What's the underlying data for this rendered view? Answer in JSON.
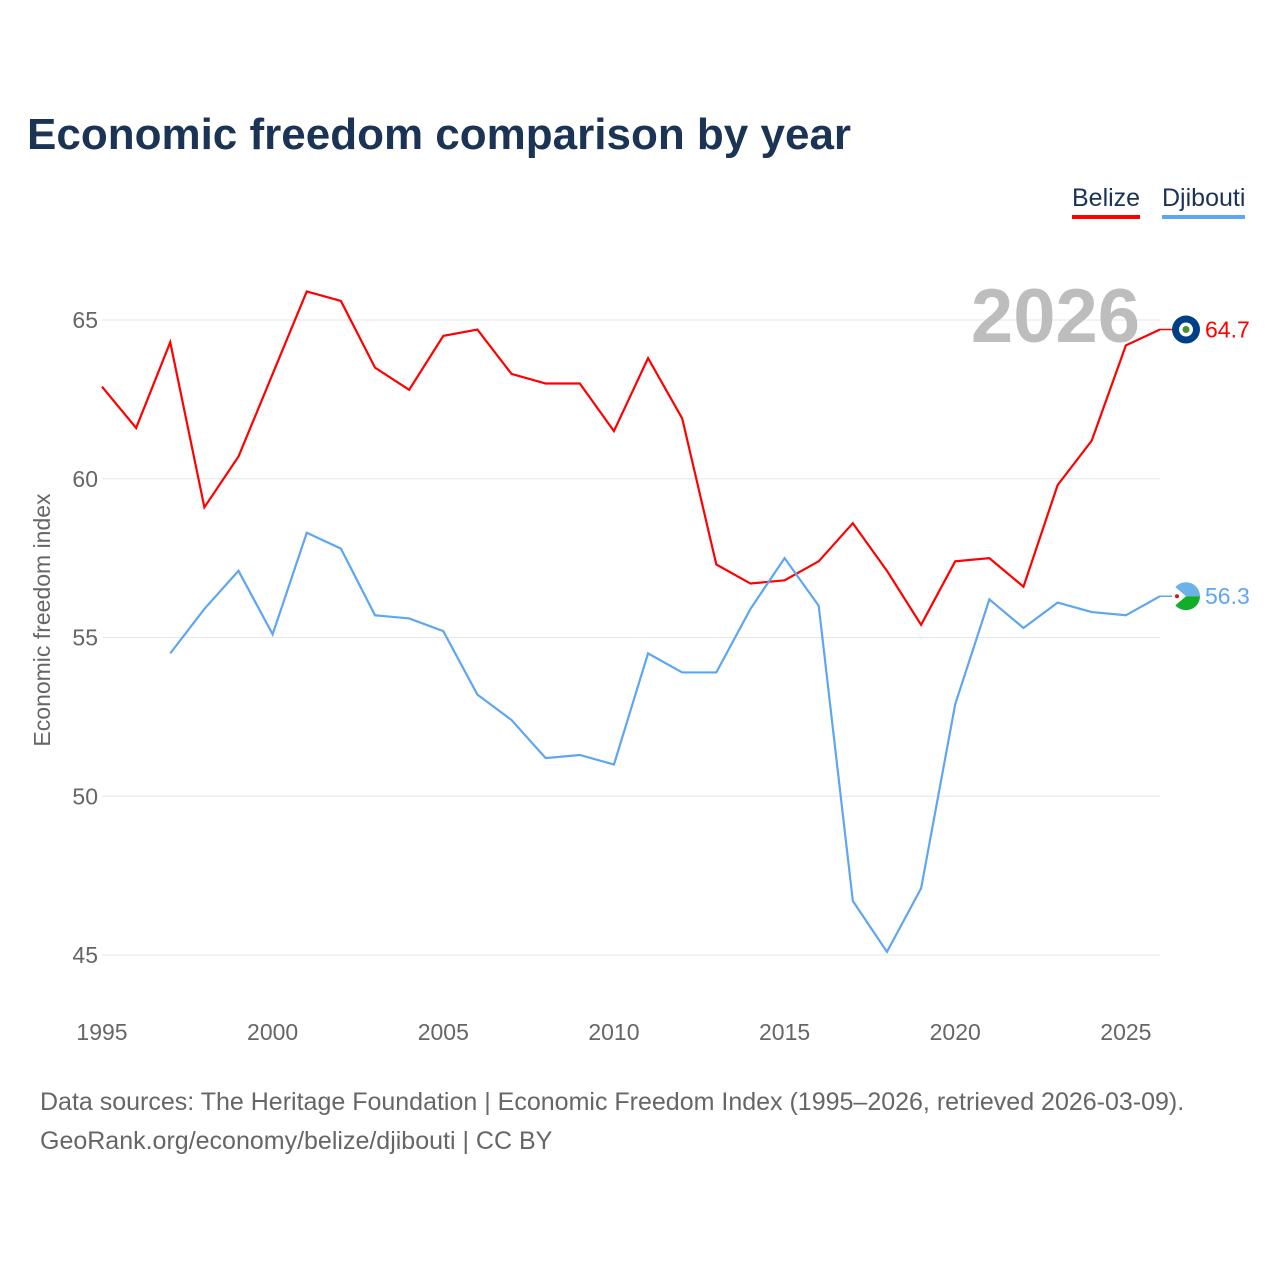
{
  "chart_data": {
    "type": "line",
    "title": "Economic freedom comparison by year",
    "xlabel": "",
    "ylabel": "Economic freedom index",
    "xlim": [
      1995,
      2026
    ],
    "ylim": [
      45,
      65
    ],
    "x_ticks": [
      "1995",
      "2000",
      "2005",
      "2010",
      "2015",
      "2020",
      "2025"
    ],
    "y_ticks": [
      "45",
      "50",
      "55",
      "60",
      "65"
    ],
    "grid": true,
    "legend_position": "top-right",
    "year_label": "2026",
    "series": [
      {
        "name": "Belize",
        "color": "#ff0000",
        "end_label": "64.7",
        "x": [
          1995,
          1996,
          1997,
          1998,
          1999,
          2000,
          2001,
          2002,
          2003,
          2004,
          2005,
          2006,
          2007,
          2008,
          2009,
          2010,
          2011,
          2012,
          2013,
          2014,
          2015,
          2016,
          2017,
          2018,
          2019,
          2020,
          2021,
          2022,
          2023,
          2024,
          2025,
          2026
        ],
        "values": [
          62.9,
          61.6,
          64.3,
          59.1,
          60.7,
          63.3,
          65.9,
          65.6,
          63.5,
          62.8,
          64.5,
          64.7,
          63.3,
          63.0,
          63.0,
          61.5,
          63.8,
          61.9,
          57.3,
          56.7,
          56.8,
          57.4,
          58.6,
          57.1,
          55.4,
          57.4,
          57.5,
          56.6,
          59.8,
          61.2,
          64.2,
          64.7
        ]
      },
      {
        "name": "Djibouti",
        "color": "#5ea6f0",
        "end_label": "56.3",
        "x": [
          1997,
          1998,
          1999,
          2000,
          2001,
          2002,
          2003,
          2004,
          2005,
          2006,
          2007,
          2008,
          2009,
          2010,
          2011,
          2012,
          2013,
          2014,
          2015,
          2016,
          2017,
          2018,
          2019,
          2020,
          2021,
          2022,
          2023,
          2024,
          2025,
          2026
        ],
        "values": [
          54.5,
          55.9,
          57.1,
          55.1,
          58.3,
          57.8,
          55.7,
          55.6,
          55.2,
          53.2,
          52.4,
          51.2,
          51.3,
          51.0,
          54.5,
          53.9,
          53.9,
          55.9,
          57.5,
          56.0,
          46.7,
          45.1,
          47.1,
          52.9,
          56.2,
          55.3,
          56.1,
          55.8,
          55.7,
          56.3
        ]
      }
    ]
  },
  "footer": {
    "line1": "Data sources: The Heritage Foundation | Economic Freedom Index (1995–2026, retrieved 2026-03-09).",
    "line2": "GeoRank.org/economy/belize/djibouti | CC BY"
  }
}
